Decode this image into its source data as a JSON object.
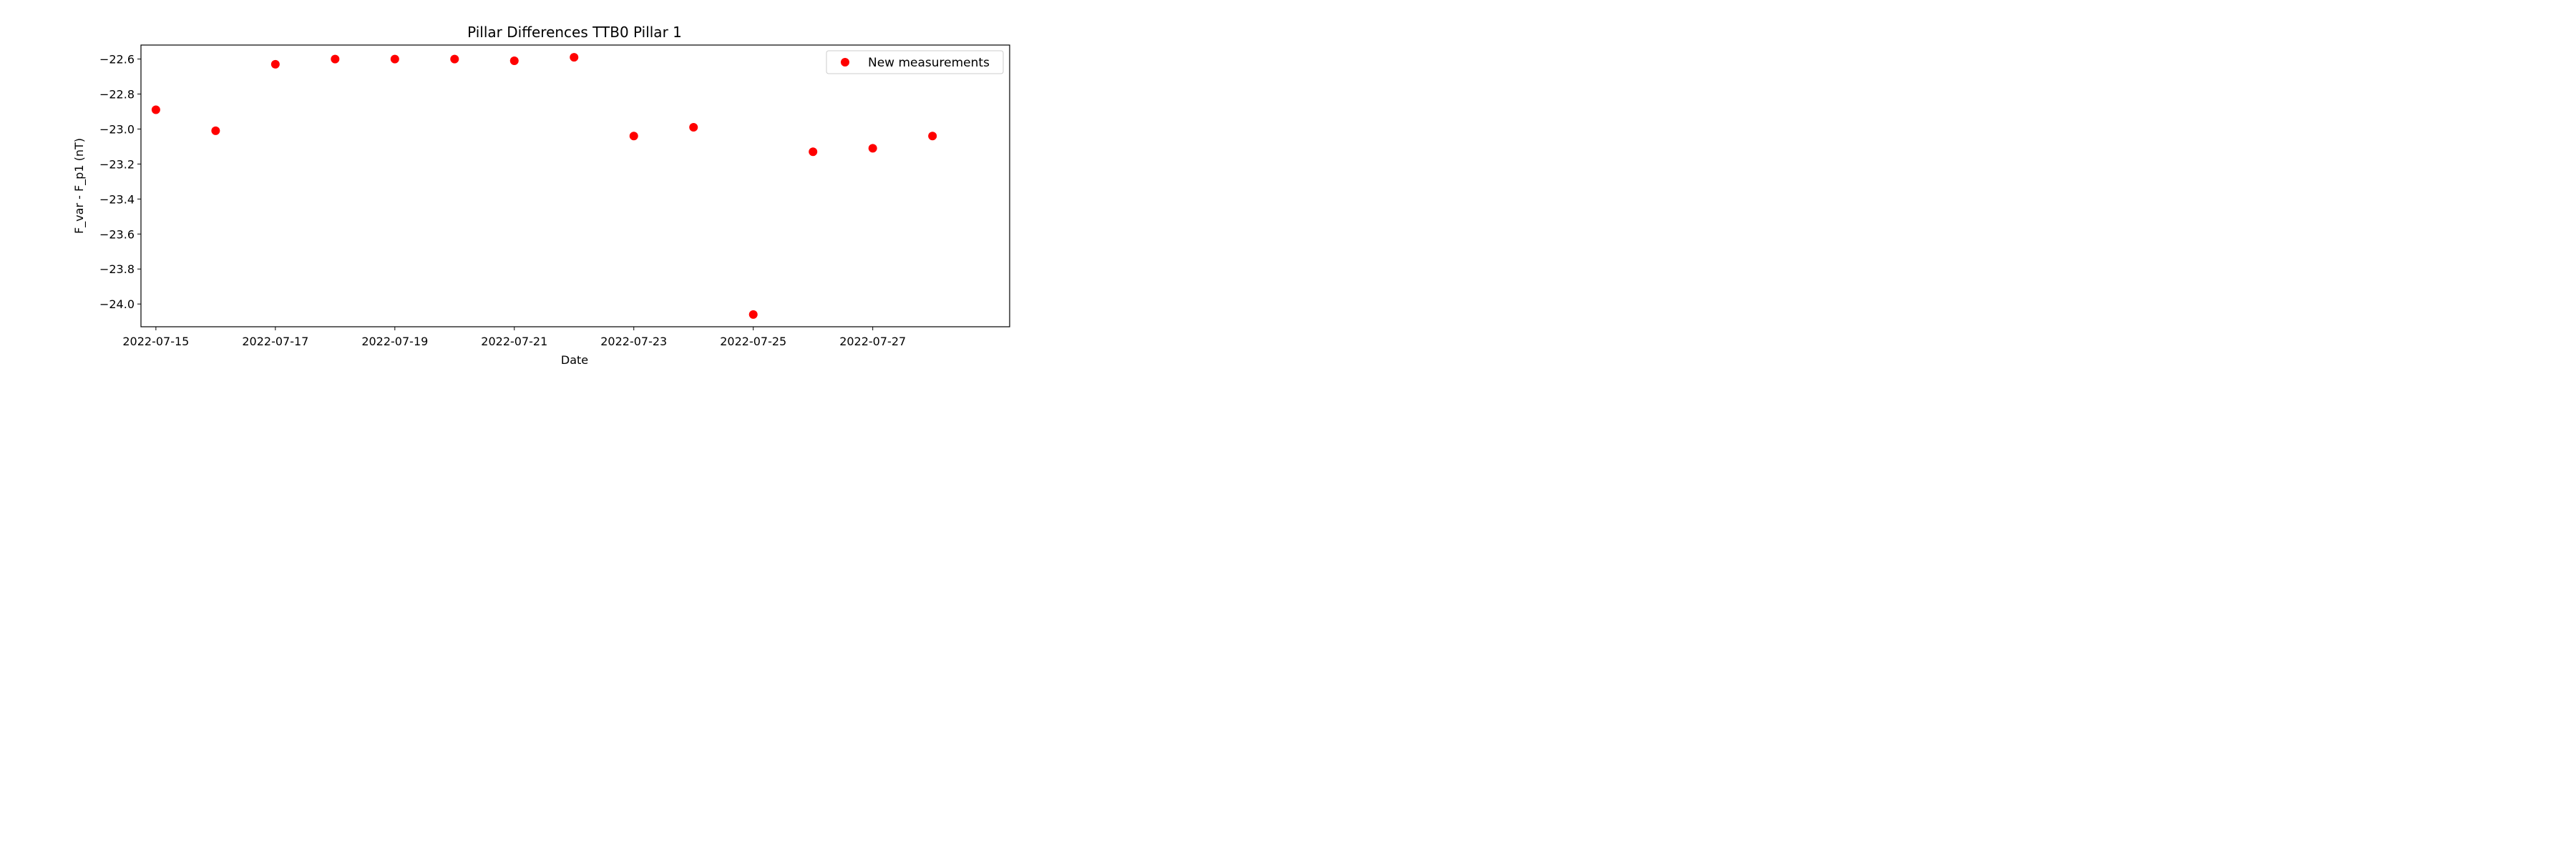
{
  "chart_data": {
    "type": "scatter",
    "title": "Pillar Differences TTB0 Pillar 1",
    "xlabel": "Date",
    "ylabel": "F_var - F_p1 (nT)",
    "x_type": "date",
    "xlim": [
      "2022-07-14T18:00",
      "2022-07-29T07:00"
    ],
    "ylim": [
      -24.13,
      -22.52
    ],
    "x_ticks": [
      "2022-07-15",
      "2022-07-17",
      "2022-07-19",
      "2022-07-21",
      "2022-07-23",
      "2022-07-25",
      "2022-07-27"
    ],
    "y_ticks": [
      -22.6,
      -22.8,
      -23.0,
      -23.2,
      -23.4,
      -23.6,
      -23.8,
      -24.0
    ],
    "y_tick_labels": [
      "−22.6",
      "−22.8",
      "−23.0",
      "−23.2",
      "−23.4",
      "−23.6",
      "−23.8",
      "−24.0"
    ],
    "grid": false,
    "legend_position": "upper-right",
    "series": [
      {
        "name": "New measurements",
        "color": "#ff0000",
        "marker": "circle",
        "points": [
          {
            "x": "2022-07-15",
            "y": -22.89
          },
          {
            "x": "2022-07-16",
            "y": -23.01
          },
          {
            "x": "2022-07-17",
            "y": -22.63
          },
          {
            "x": "2022-07-18",
            "y": -22.6
          },
          {
            "x": "2022-07-19",
            "y": -22.6
          },
          {
            "x": "2022-07-20",
            "y": -22.6
          },
          {
            "x": "2022-07-21",
            "y": -22.61
          },
          {
            "x": "2022-07-22",
            "y": -22.59
          },
          {
            "x": "2022-07-23",
            "y": -23.04
          },
          {
            "x": "2022-07-24",
            "y": -22.99
          },
          {
            "x": "2022-07-25",
            "y": -24.06
          },
          {
            "x": "2022-07-26",
            "y": -23.13
          },
          {
            "x": "2022-07-27",
            "y": -23.11
          },
          {
            "x": "2022-07-28",
            "y": -23.04
          }
        ]
      }
    ]
  }
}
